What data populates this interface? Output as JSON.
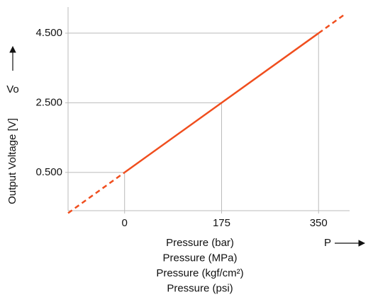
{
  "chart_data": {
    "type": "line",
    "y_label": "Output Voltage [V]",
    "y_symbol": "Vo",
    "x_symbol": "P",
    "x_labels": [
      "Pressure (bar)",
      "Pressure (MPa)",
      "Pressure (kgf/cm²)",
      "Pressure (psi)"
    ],
    "series": [
      {
        "color": "#f04e1e",
        "dashed": false,
        "x": [
          0,
          175,
          350
        ],
        "values": [
          0.5,
          2.5,
          4.5
        ]
      },
      {
        "color": "#f04e1e",
        "dashed": true,
        "x": [
          -102,
          0
        ],
        "values": [
          -0.67,
          0.5
        ]
      },
      {
        "color": "#f04e1e",
        "dashed": true,
        "x": [
          350,
          398
        ],
        "values": [
          4.5,
          5.05
        ]
      }
    ],
    "xlim": [
      -102,
      406
    ],
    "ylim": [
      -0.6,
      5.25
    ],
    "xticks": [
      0,
      175,
      350
    ],
    "yticks": [
      {
        "value": 0.5,
        "label": "0.500"
      },
      {
        "value": 2.5,
        "label": "2.500"
      },
      {
        "value": 4.5,
        "label": "4.500"
      }
    ],
    "grid": false
  }
}
